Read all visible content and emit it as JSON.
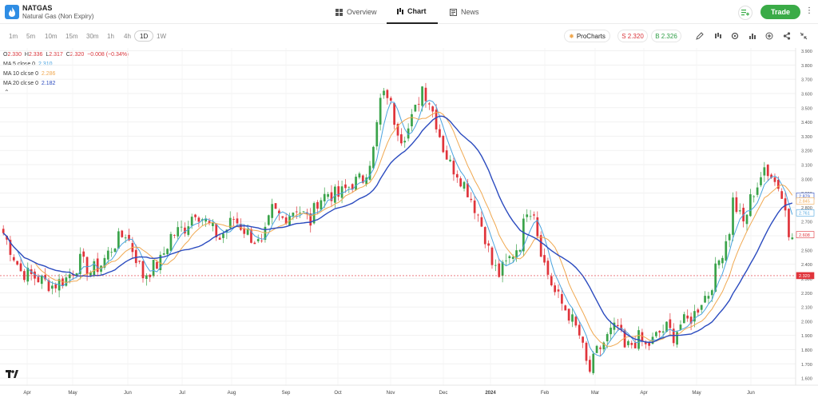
{
  "header": {
    "symbol": "NATGAS",
    "subtitle": "Natural Gas (Non Expiry)",
    "tabs": [
      {
        "label": "Overview",
        "icon": "grid-icon",
        "active": false
      },
      {
        "label": "Chart",
        "icon": "candles-icon",
        "active": true
      },
      {
        "label": "News",
        "icon": "news-icon",
        "active": false
      }
    ],
    "trade_label": "Trade"
  },
  "toolbar": {
    "timeframes": [
      "1m",
      "5m",
      "10m",
      "15m",
      "30m",
      "1h",
      "4h",
      "1D",
      "1W"
    ],
    "active_timeframe": "1D",
    "prochart_label": "ProCharts",
    "sell_label": "S 2.320",
    "buy_label": "B 2.326"
  },
  "legend": {
    "o_label": "O",
    "o": "2.330",
    "h_label": "H",
    "h": "2.336",
    "l_label": "L",
    "l": "2.317",
    "c_label": "C",
    "c": "2.320",
    "change": "−0.008 (−0.34%)",
    "ma5_label": "MA 5 close 0",
    "ma5": "2.310",
    "ma10_label": "MA 10 close 0",
    "ma10": "2.286",
    "ma20_label": "MA 20 close 0",
    "ma20": "2.182"
  },
  "colors": {
    "up": "#3aa34a",
    "down": "#e0343b",
    "ma5": "#4aa3df",
    "ma10": "#f0a850",
    "ma20": "#2b4bbf",
    "price_line": "#e0343b"
  },
  "chart_data": {
    "type": "candlestick",
    "y_ticks": [
      "1.600",
      "1.700",
      "1.800",
      "1.900",
      "2.000",
      "2.100",
      "2.200",
      "2.300",
      "2.400",
      "2.500",
      "2.600",
      "2.700",
      "2.800",
      "2.900",
      "3.000",
      "3.100",
      "3.200",
      "3.300",
      "3.400",
      "3.500",
      "3.600",
      "3.700",
      "3.800",
      "3.900"
    ],
    "ylim": [
      1.55,
      3.92
    ],
    "x_ticks": [
      "Apr",
      "May",
      "Jun",
      "Jul",
      "Aug",
      "Sep",
      "Oct",
      "Nov",
      "Dec",
      "2024",
      "Feb",
      "Mar",
      "Apr",
      "May",
      "Jun"
    ],
    "current_price": "2.320",
    "price_labels": [
      {
        "value": 2.879,
        "text": "2.879",
        "color": "#2b4bbf"
      },
      {
        "value": 2.845,
        "text": "2.845",
        "color": "#f0a850"
      },
      {
        "value": 2.761,
        "text": "2.761",
        "color": "#4aa3df"
      },
      {
        "value": 2.608,
        "text": "2.608",
        "color": "#e0343b"
      },
      {
        "value": 2.32,
        "text": "2.320",
        "color": "#e0343b"
      }
    ],
    "anchors": [
      [
        0,
        2.62
      ],
      [
        5,
        2.35
      ],
      [
        10,
        2.3
      ],
      [
        14,
        2.25
      ],
      [
        18,
        2.3
      ],
      [
        22,
        2.42
      ],
      [
        25,
        2.35
      ],
      [
        28,
        2.4
      ],
      [
        32,
        2.55
      ],
      [
        35,
        2.62
      ],
      [
        38,
        2.45
      ],
      [
        40,
        2.32
      ],
      [
        45,
        2.42
      ],
      [
        48,
        2.6
      ],
      [
        52,
        2.66
      ],
      [
        55,
        2.78
      ],
      [
        58,
        2.7
      ],
      [
        62,
        2.58
      ],
      [
        66,
        2.72
      ],
      [
        70,
        2.62
      ],
      [
        74,
        2.52
      ],
      [
        77,
        2.78
      ],
      [
        80,
        2.72
      ],
      [
        84,
        2.8
      ],
      [
        88,
        2.7
      ],
      [
        90,
        2.85
      ],
      [
        93,
        2.9
      ],
      [
        96,
        2.88
      ],
      [
        100,
        2.97
      ],
      [
        103,
        3.0
      ],
      [
        106,
        3.2
      ],
      [
        108,
        3.55
      ],
      [
        110,
        3.6
      ],
      [
        112,
        3.42
      ],
      [
        114,
        3.3
      ],
      [
        116,
        3.35
      ],
      [
        118,
        3.48
      ],
      [
        120,
        3.65
      ],
      [
        122,
        3.55
      ],
      [
        124,
        3.4
      ],
      [
        126,
        3.22
      ],
      [
        128,
        3.1
      ],
      [
        130,
        3.05
      ],
      [
        133,
        2.92
      ],
      [
        136,
        2.75
      ],
      [
        138,
        2.6
      ],
      [
        140,
        2.4
      ],
      [
        142,
        2.33
      ],
      [
        144,
        2.4
      ],
      [
        146,
        2.48
      ],
      [
        148,
        2.55
      ],
      [
        150,
        2.8
      ],
      [
        152,
        2.78
      ],
      [
        153,
        2.62
      ],
      [
        155,
        2.4
      ],
      [
        158,
        2.2
      ],
      [
        160,
        2.12
      ],
      [
        162,
        2.05
      ],
      [
        165,
        1.9
      ],
      [
        167,
        1.7
      ],
      [
        168,
        1.65
      ],
      [
        170,
        1.78
      ],
      [
        172,
        1.85
      ],
      [
        174,
        1.92
      ],
      [
        176,
        1.96
      ],
      [
        178,
        1.8
      ],
      [
        180,
        1.84
      ],
      [
        182,
        1.88
      ],
      [
        184,
        1.82
      ],
      [
        186,
        1.86
      ],
      [
        188,
        1.92
      ],
      [
        190,
        1.95
      ],
      [
        192,
        1.9
      ],
      [
        194,
        1.98
      ],
      [
        196,
        2.0
      ],
      [
        198,
        2.05
      ],
      [
        200,
        2.15
      ],
      [
        202,
        2.2
      ],
      [
        204,
        2.35
      ],
      [
        206,
        2.5
      ],
      [
        208,
        2.65
      ],
      [
        209,
        2.85
      ],
      [
        211,
        2.75
      ],
      [
        213,
        2.7
      ],
      [
        214,
        2.88
      ],
      [
        216,
        2.9
      ],
      [
        217,
        3.05
      ],
      [
        218,
        3.1
      ],
      [
        220,
        2.96
      ],
      [
        222,
        2.98
      ],
      [
        223,
        2.9
      ],
      [
        224,
        2.78
      ],
      [
        225,
        2.62
      ],
      [
        226,
        2.6
      ]
    ]
  }
}
